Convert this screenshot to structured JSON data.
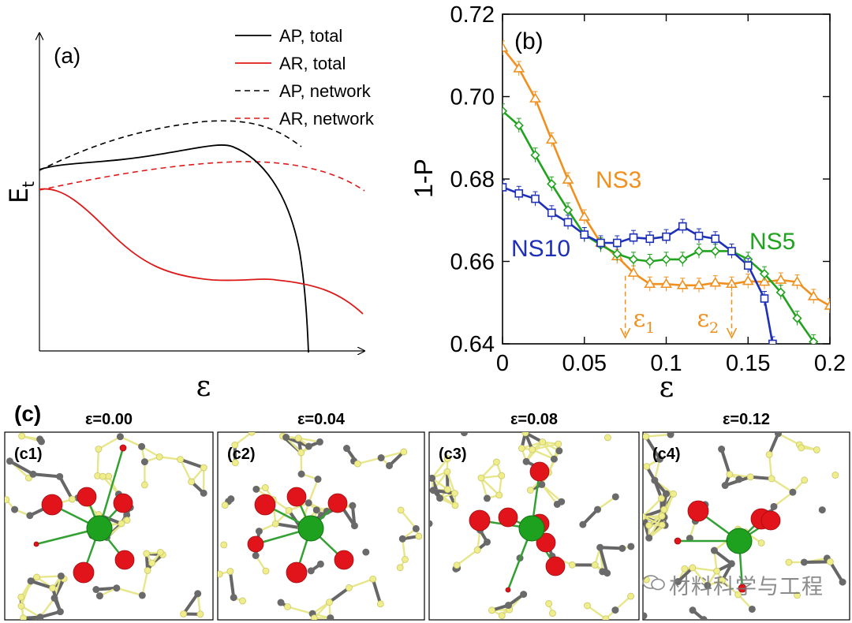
{
  "panel_a": {
    "label": "(a)",
    "ylabel": "E",
    "ylabel_sub": "t",
    "xlabel": "ε",
    "legend": [
      {
        "label": "AP, total",
        "color": "#000000",
        "dash": "solid"
      },
      {
        "label": "AR, total",
        "color": "#dd1a1a",
        "dash": "solid"
      },
      {
        "label": "AP, network",
        "color": "#000000",
        "dash": "dashed"
      },
      {
        "label": "AR, network",
        "color": "#dd1a1a",
        "dash": "dashed"
      }
    ]
  },
  "panel_b_label": "(b)",
  "panel_c": {
    "label": "(c)",
    "snapshots": [
      {
        "label": "(c1)",
        "title": "ε=0.00"
      },
      {
        "label": "(c2)",
        "title": "ε=0.04"
      },
      {
        "label": "(c3)",
        "title": "ε=0.08"
      },
      {
        "label": "(c4)",
        "title": "ε=0.12"
      }
    ]
  },
  "watermark": "材料科学与工程",
  "chart_data": [
    {
      "type": "line",
      "panel": "(b)",
      "xlabel": "ε",
      "ylabel": "1-P",
      "xlim": [
        0,
        0.2
      ],
      "ylim": [
        0.64,
        0.72
      ],
      "xticks": [
        "0",
        "0.05",
        "0.1",
        "0.15",
        "0.2"
      ],
      "yticks": [
        "0.64",
        "0.66",
        "0.68",
        "0.70",
        "0.72"
      ],
      "annotations": [
        {
          "text": "ε",
          "sub": "1",
          "x": 0.075,
          "color": "#f0901e"
        },
        {
          "text": "ε",
          "sub": "2",
          "x": 0.14,
          "color": "#f0901e"
        }
      ],
      "series": [
        {
          "name": "NS3",
          "color": "#f0901e",
          "marker": "triangle",
          "x": [
            0,
            0.01,
            0.02,
            0.03,
            0.04,
            0.05,
            0.06,
            0.07,
            0.08,
            0.09,
            0.1,
            0.11,
            0.12,
            0.13,
            0.14,
            0.15,
            0.16,
            0.17,
            0.18,
            0.19,
            0.2
          ],
          "y": [
            0.7118,
            0.7068,
            0.6995,
            0.6895,
            0.6798,
            0.6708,
            0.6645,
            0.6612,
            0.6572,
            0.6545,
            0.6545,
            0.6542,
            0.6542,
            0.6548,
            0.6545,
            0.6552,
            0.655,
            0.6555,
            0.655,
            0.6515,
            0.6492
          ]
        },
        {
          "name": "NS5",
          "color": "#21a31f",
          "marker": "diamond",
          "x": [
            0,
            0.01,
            0.02,
            0.03,
            0.04,
            0.05,
            0.06,
            0.07,
            0.08,
            0.09,
            0.1,
            0.11,
            0.12,
            0.13,
            0.14,
            0.15,
            0.16,
            0.17,
            0.18,
            0.19
          ],
          "y": [
            0.6965,
            0.693,
            0.6858,
            0.6788,
            0.6725,
            0.6665,
            0.664,
            0.6618,
            0.6605,
            0.66,
            0.6605,
            0.6605,
            0.6625,
            0.6625,
            0.6625,
            0.6605,
            0.657,
            0.6525,
            0.6462,
            0.6405
          ]
        },
        {
          "name": "NS10",
          "color": "#1e2fb8",
          "marker": "square",
          "x": [
            0,
            0.01,
            0.02,
            0.03,
            0.04,
            0.05,
            0.06,
            0.07,
            0.08,
            0.09,
            0.1,
            0.11,
            0.12,
            0.13,
            0.14,
            0.15,
            0.16,
            0.165
          ],
          "y": [
            0.678,
            0.6765,
            0.6752,
            0.6718,
            0.6695,
            0.6665,
            0.6645,
            0.6645,
            0.6658,
            0.6655,
            0.666,
            0.6685,
            0.6662,
            0.6655,
            0.6625,
            0.659,
            0.651,
            0.64
          ]
        }
      ]
    }
  ]
}
